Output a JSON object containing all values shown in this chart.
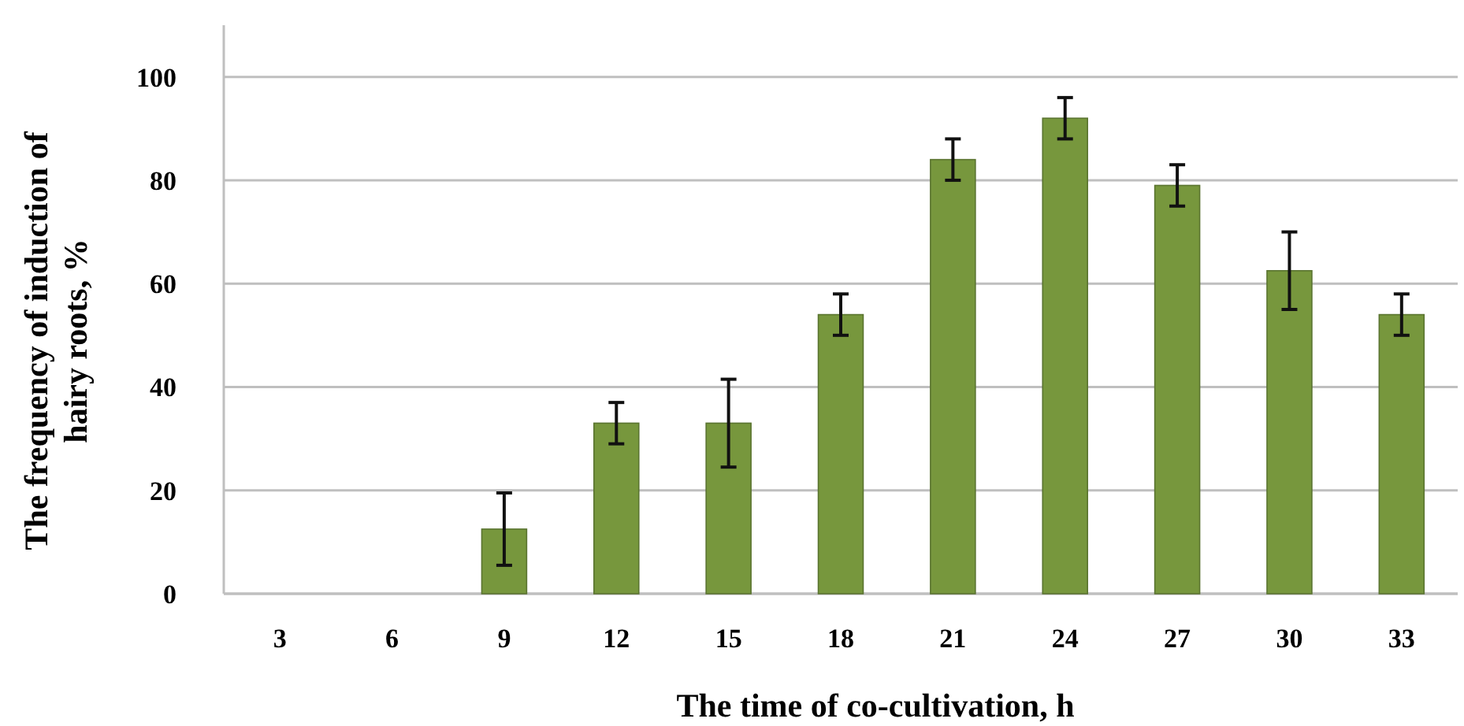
{
  "chart_data": {
    "type": "bar",
    "xlabel": "The time of co-cultivation, h",
    "ylabel": "The frequency of induction of hairy roots, %",
    "categories": [
      "3",
      "6",
      "9",
      "12",
      "15",
      "18",
      "21",
      "24",
      "27",
      "30",
      "33"
    ],
    "values": [
      0,
      0,
      12.5,
      33,
      33,
      54,
      84,
      92,
      79,
      62.5,
      54
    ],
    "errors": [
      null,
      null,
      7,
      4,
      8.5,
      4,
      4,
      4,
      4,
      7.5,
      4
    ],
    "color": "#77973d",
    "ylim": [
      0,
      110
    ],
    "yticks": [
      0,
      20,
      40,
      60,
      80,
      100
    ],
    "grid": "y"
  }
}
